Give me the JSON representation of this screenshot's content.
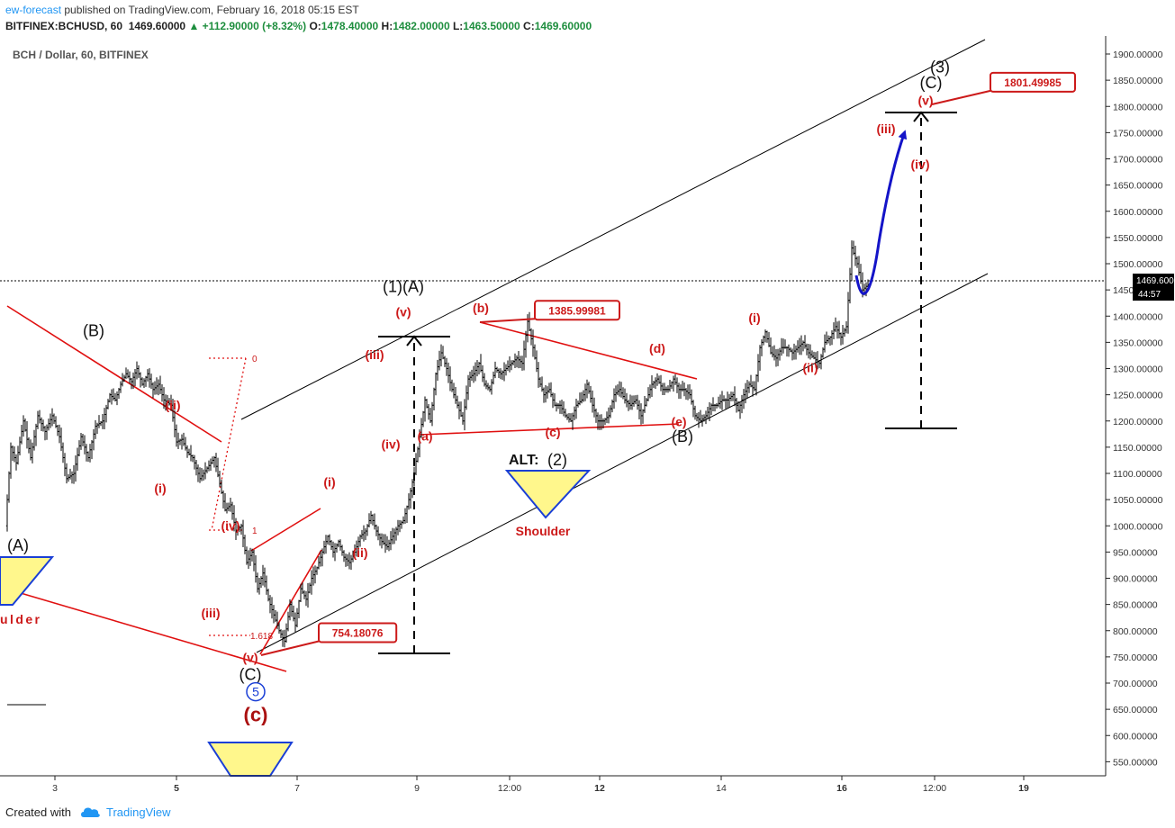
{
  "header": {
    "publisher": "ew-forecast",
    "published_text": "published on TradingView.com, February 16, 2018 05:15 EST",
    "symbol": "BITFINEX:BCHUSD, 60",
    "price": "1469.60000",
    "change": "+112.90000 (+8.32%)",
    "o_label": "O:",
    "o": "1478.40000",
    "h_label": "H:",
    "h": "1482.00000",
    "l_label": "L:",
    "l": "1463.50000",
    "c_label": "C:",
    "c": "1469.60000"
  },
  "footer": {
    "created_with": "Created with",
    "brand": "TradingView"
  },
  "colors": {
    "wave_red": "#cc1a1a",
    "projection_blue": "#1414c8",
    "price_line": "#000000",
    "triangle_fill": "#fff78c",
    "axis_text": "#333333"
  },
  "chart_data": {
    "type": "candlestick",
    "title": "BCH / Dollar, 60, BITFINEX",
    "current_price": 1469.6,
    "current_price_label": "1469.60000",
    "countdown": "44:57",
    "ylim": [
      510,
      1935
    ],
    "y_ticks": [
      550,
      600,
      650,
      700,
      750,
      800,
      850,
      900,
      950,
      1000,
      1050,
      1100,
      1150,
      1200,
      1250,
      1300,
      1350,
      1400,
      1450,
      1500,
      1550,
      1600,
      1650,
      1700,
      1750,
      1800,
      1850,
      1900
    ],
    "x_ticks": [
      "3",
      "5",
      "7",
      "9",
      "12:00",
      "12",
      "14",
      "16",
      "12:00",
      "19"
    ],
    "x_tick_bold": [
      false,
      true,
      false,
      false,
      false,
      true,
      false,
      true,
      false,
      true
    ],
    "price_path": [
      [
        0,
        1000
      ],
      [
        3,
        1150
      ],
      [
        6,
        1120
      ],
      [
        10,
        1200
      ],
      [
        14,
        1130
      ],
      [
        18,
        1210
      ],
      [
        22,
        1180
      ],
      [
        26,
        1210
      ],
      [
        30,
        1170
      ],
      [
        34,
        1090
      ],
      [
        38,
        1100
      ],
      [
        42,
        1170
      ],
      [
        46,
        1130
      ],
      [
        50,
        1190
      ],
      [
        54,
        1200
      ],
      [
        58,
        1250
      ],
      [
        61,
        1240
      ],
      [
        64,
        1270
      ],
      [
        67,
        1290
      ],
      [
        70,
        1275
      ],
      [
        73,
        1300
      ],
      [
        76,
        1270
      ],
      [
        79,
        1290
      ],
      [
        82,
        1260
      ],
      [
        85,
        1270
      ],
      [
        88,
        1240
      ],
      [
        92,
        1230
      ],
      [
        95,
        1160
      ],
      [
        98,
        1165
      ],
      [
        101,
        1140
      ],
      [
        104,
        1130
      ],
      [
        108,
        1090
      ],
      [
        112,
        1110
      ],
      [
        116,
        1130
      ],
      [
        119,
        1080
      ],
      [
        122,
        1030
      ],
      [
        125,
        1040
      ],
      [
        128,
        990
      ],
      [
        131,
        1000
      ],
      [
        134,
        930
      ],
      [
        137,
        950
      ],
      [
        140,
        880
      ],
      [
        143,
        910
      ],
      [
        146,
        860
      ],
      [
        149,
        830
      ],
      [
        152,
        800
      ],
      [
        155,
        780
      ],
      [
        158,
        850
      ],
      [
        161,
        810
      ],
      [
        164,
        880
      ],
      [
        167,
        860
      ],
      [
        170,
        900
      ],
      [
        173,
        920
      ],
      [
        176,
        950
      ],
      [
        179,
        980
      ],
      [
        182,
        950
      ],
      [
        185,
        970
      ],
      [
        188,
        940
      ],
      [
        191,
        930
      ],
      [
        194,
        950
      ],
      [
        197,
        980
      ],
      [
        200,
        990
      ],
      [
        203,
        1020
      ],
      [
        206,
        990
      ],
      [
        209,
        970
      ],
      [
        212,
        960
      ],
      [
        215,
        980
      ],
      [
        218,
        1000
      ],
      [
        221,
        1010
      ],
      [
        224,
        1050
      ],
      [
        227,
        1100
      ],
      [
        230,
        1170
      ],
      [
        233,
        1240
      ],
      [
        236,
        1200
      ],
      [
        239,
        1290
      ],
      [
        242,
        1330
      ],
      [
        245,
        1300
      ],
      [
        248,
        1260
      ],
      [
        251,
        1230
      ],
      [
        254,
        1200
      ],
      [
        257,
        1280
      ],
      [
        260,
        1290
      ],
      [
        263,
        1310
      ],
      [
        266,
        1270
      ],
      [
        269,
        1260
      ],
      [
        272,
        1300
      ],
      [
        275,
        1290
      ],
      [
        278,
        1300
      ],
      [
        281,
        1310
      ],
      [
        284,
        1320
      ],
      [
        287,
        1310
      ],
      [
        290,
        1390
      ],
      [
        293,
        1340
      ],
      [
        296,
        1280
      ],
      [
        299,
        1250
      ],
      [
        302,
        1260
      ],
      [
        305,
        1230
      ],
      [
        308,
        1230
      ],
      [
        311,
        1210
      ],
      [
        314,
        1200
      ],
      [
        317,
        1230
      ],
      [
        320,
        1240
      ],
      [
        323,
        1270
      ],
      [
        326,
        1230
      ],
      [
        329,
        1200
      ],
      [
        332,
        1200
      ],
      [
        335,
        1210
      ],
      [
        338,
        1250
      ],
      [
        341,
        1260
      ],
      [
        344,
        1240
      ],
      [
        347,
        1230
      ],
      [
        350,
        1240
      ],
      [
        353,
        1210
      ],
      [
        356,
        1240
      ],
      [
        359,
        1270
      ],
      [
        362,
        1280
      ],
      [
        365,
        1260
      ],
      [
        368,
        1260
      ],
      [
        371,
        1280
      ],
      [
        374,
        1260
      ],
      [
        377,
        1260
      ],
      [
        380,
        1250
      ],
      [
        383,
        1210
      ],
      [
        386,
        1200
      ],
      [
        389,
        1210
      ],
      [
        392,
        1230
      ],
      [
        395,
        1230
      ],
      [
        398,
        1240
      ],
      [
        401,
        1240
      ],
      [
        404,
        1250
      ],
      [
        407,
        1220
      ],
      [
        410,
        1250
      ],
      [
        413,
        1270
      ],
      [
        416,
        1260
      ],
      [
        419,
        1340
      ],
      [
        422,
        1370
      ],
      [
        425,
        1330
      ],
      [
        428,
        1320
      ],
      [
        431,
        1340
      ],
      [
        434,
        1340
      ],
      [
        437,
        1330
      ],
      [
        440,
        1340
      ],
      [
        443,
        1350
      ],
      [
        446,
        1330
      ],
      [
        449,
        1320
      ],
      [
        452,
        1310
      ],
      [
        455,
        1350
      ],
      [
        458,
        1360
      ],
      [
        461,
        1380
      ],
      [
        464,
        1360
      ],
      [
        467,
        1380
      ],
      [
        470,
        1530
      ],
      [
        473,
        1500
      ],
      [
        476,
        1450
      ],
      [
        479,
        1460
      ]
    ],
    "wave_labels": [
      {
        "text": "(A)",
        "x": 6,
        "y": 952,
        "color": "dark"
      },
      {
        "text": "(B)",
        "x": 48,
        "y": 1362,
        "color": "dark"
      },
      {
        "text": "(ii)",
        "x": 92,
        "y": 1222,
        "color": "red"
      },
      {
        "text": "(i)",
        "x": 85,
        "y": 1063,
        "color": "red"
      },
      {
        "text": "(iv)",
        "x": 124,
        "y": 992,
        "color": "red"
      },
      {
        "text": "(iii)",
        "x": 113,
        "y": 825,
        "color": "red"
      },
      {
        "text": "(v)",
        "x": 135,
        "y": 740,
        "color": "red"
      },
      {
        "text": "(C)",
        "x": 135,
        "y": 706,
        "color": "dark"
      },
      {
        "text": "5",
        "x": 138,
        "y": 675,
        "color": "circle"
      },
      {
        "text": "(c)",
        "x": 138,
        "y": 627,
        "color": "bigred"
      },
      {
        "text": "(i)",
        "x": 179,
        "y": 1075,
        "color": "red"
      },
      {
        "text": "(ii)",
        "x": 196,
        "y": 940,
        "color": "red"
      },
      {
        "text": "(iii)",
        "x": 204,
        "y": 1318,
        "color": "red"
      },
      {
        "text": "(iv)",
        "x": 213,
        "y": 1147,
        "color": "red"
      },
      {
        "text": "(v)",
        "x": 220,
        "y": 1400,
        "color": "red"
      },
      {
        "text": "(1)(A)",
        "x": 220,
        "y": 1446,
        "color": "dark"
      },
      {
        "text": "(a)",
        "x": 232,
        "y": 1163,
        "color": "red"
      },
      {
        "text": "(b)",
        "x": 263,
        "y": 1407,
        "color": "red"
      },
      {
        "text": "(c)",
        "x": 303,
        "y": 1170,
        "color": "red"
      },
      {
        "text": "(d)",
        "x": 361,
        "y": 1330,
        "color": "red"
      },
      {
        "text": "(e)",
        "x": 373,
        "y": 1190,
        "color": "red"
      },
      {
        "text": "(B)",
        "x": 375,
        "y": 1160,
        "color": "dark"
      },
      {
        "text": "(i)",
        "x": 415,
        "y": 1388,
        "color": "red"
      },
      {
        "text": "(ii)",
        "x": 446,
        "y": 1293,
        "color": "red"
      },
      {
        "text": "(iii)",
        "x": 488,
        "y": 1749,
        "color": "red"
      },
      {
        "text": "(iv)",
        "x": 507,
        "y": 1681,
        "color": "red"
      },
      {
        "text": "(v)",
        "x": 510,
        "y": 1803,
        "color": "red"
      },
      {
        "text": "(C)",
        "x": 513,
        "y": 1835,
        "color": "dark"
      },
      {
        "text": "(3)",
        "x": 518,
        "y": 1865,
        "color": "dark"
      }
    ],
    "annotations": [
      {
        "text": "754.18076",
        "x": 173,
        "y": 797
      },
      {
        "text": "1385.99981",
        "x": 293,
        "y": 1412
      },
      {
        "text": "1801.49985",
        "x": 546,
        "y": 1847
      }
    ],
    "alt_label": {
      "prefix": "ALT:",
      "wave": "(2)"
    },
    "shoulder_label": "Shoulder",
    "fib_labels": [
      "0",
      "1",
      "1.618"
    ]
  }
}
